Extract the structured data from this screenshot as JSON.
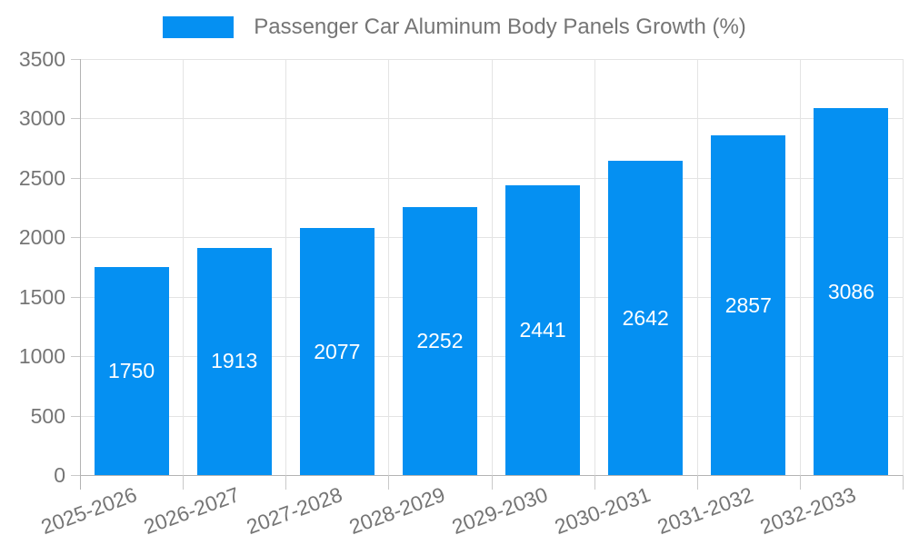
{
  "legend": {
    "label": "Passenger Car Aluminum Body Panels Growth (%)"
  },
  "chart_data": {
    "type": "bar",
    "title": "Passenger Car Aluminum Body Panels Growth (%)",
    "series_name": "Passenger Car Aluminum Body Panels Growth (%)",
    "categories": [
      "2025-2026",
      "2026-2027",
      "2027-2028",
      "2028-2029",
      "2029-2030",
      "2030-2031",
      "2031-2032",
      "2032-2033"
    ],
    "values": [
      1750,
      1913,
      2077,
      2252,
      2441,
      2642,
      2857,
      3086
    ],
    "data_labels_visible": true,
    "data_label_position": "inside-center",
    "xlabel": "",
    "ylabel": "",
    "ylim": [
      0,
      3500
    ],
    "ytick_step": 500,
    "yticks": [
      0,
      500,
      1000,
      1500,
      2000,
      2500,
      3000,
      3500
    ],
    "grid": true,
    "legend_position": "top-center",
    "colors": {
      "bar": "#0590f2",
      "data_label": "#ffffff",
      "axis_text": "#757575",
      "legend_text": "#757575",
      "gridline": "#e4e4e4",
      "axis_line": "#b3b3b3",
      "tick_mark": "#c9c9c9"
    }
  }
}
